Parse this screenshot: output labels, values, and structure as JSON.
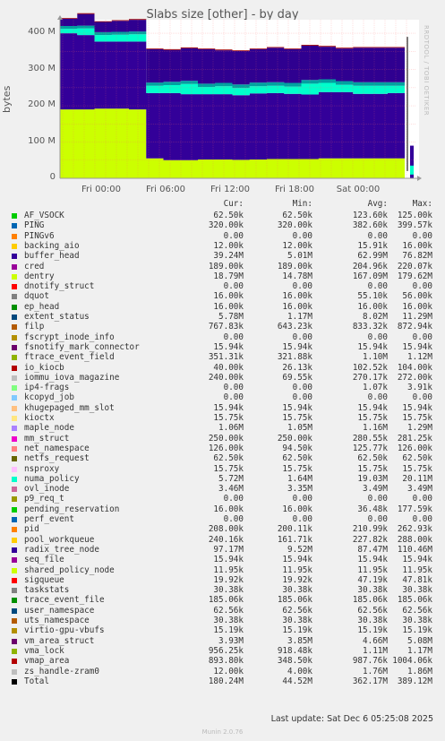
{
  "chart_data": {
    "type": "area",
    "title": "Slabs size [other] - by day",
    "ylabel": "bytes",
    "yticks": [
      "0",
      "100 M",
      "200 M",
      "300 M",
      "400 M"
    ],
    "ylim": [
      0,
      420
    ],
    "xticks": [
      "Fri 00:00",
      "Fri 06:00",
      "Fri 12:00",
      "Fri 18:00",
      "Sat 00:00"
    ],
    "stack_layers": [
      {
        "name": "dentry",
        "color": "#CCFF00",
        "values": [
          190,
          190,
          192,
          192,
          190,
          55,
          50,
          50,
          52,
          52,
          51,
          52,
          53,
          53,
          53,
          55,
          55,
          55,
          55,
          55,
          55
        ]
      },
      {
        "name": "buffer_head",
        "color": "#330099",
        "values": [
          210,
          205,
          185,
          185,
          187,
          180,
          185,
          182,
          180,
          180,
          178,
          182,
          182,
          180,
          178,
          183,
          183,
          178,
          178,
          180,
          185
        ]
      },
      {
        "name": "numa_policy",
        "color": "#00FFCC",
        "values": [
          12,
          18,
          18,
          19,
          20,
          20,
          22,
          28,
          20,
          22,
          20,
          20,
          20,
          20,
          30,
          25,
          20,
          22,
          22,
          20,
          20
        ]
      },
      {
        "name": "other",
        "color": "#00A0A0",
        "values": [
          8,
          8,
          8,
          8,
          8,
          9,
          9,
          9,
          9,
          9,
          10,
          10,
          10,
          10,
          10,
          10,
          10,
          10,
          10,
          10,
          10
        ]
      },
      {
        "name": "radix_tree_node",
        "color": "#2F0090",
        "values": [
          20,
          32,
          28,
          30,
          32,
          92,
          88,
          90,
          95,
          90,
          92,
          92,
          95,
          93,
          95,
          90,
          90,
          95,
          95,
          95,
          92
        ]
      },
      {
        "name": "filp",
        "color": "#a00000",
        "values": [
          2,
          2,
          2,
          2,
          2,
          2,
          2,
          2,
          2,
          2,
          2,
          2,
          2,
          2,
          2,
          2,
          2,
          2,
          2,
          2,
          2
        ]
      }
    ],
    "legend_headers": [
      "Cur:",
      "Min:",
      "Avg:",
      "Max:"
    ],
    "legend": [
      {
        "name": "AF_VSOCK",
        "color": "#00CC00",
        "cur": "62.50k",
        "min": "62.50k",
        "avg": "123.60k",
        "max": "125.00k"
      },
      {
        "name": "PING",
        "color": "#0066B3",
        "cur": "320.00k",
        "min": "320.00k",
        "avg": "382.60k",
        "max": "399.57k"
      },
      {
        "name": "PINGv6",
        "color": "#FF8000",
        "cur": "0.00",
        "min": "0.00",
        "avg": "0.00",
        "max": "0.00"
      },
      {
        "name": "backing_aio",
        "color": "#FFCC00",
        "cur": "12.00k",
        "min": "12.00k",
        "avg": "15.91k",
        "max": "16.00k"
      },
      {
        "name": "buffer_head",
        "color": "#330099",
        "cur": "39.24M",
        "min": "5.01M",
        "avg": "62.99M",
        "max": "76.82M"
      },
      {
        "name": "cred",
        "color": "#990099",
        "cur": "189.00k",
        "min": "189.00k",
        "avg": "204.96k",
        "max": "220.07k"
      },
      {
        "name": "dentry",
        "color": "#CCFF00",
        "cur": "18.79M",
        "min": "14.78M",
        "avg": "167.09M",
        "max": "179.62M"
      },
      {
        "name": "dnotify_struct",
        "color": "#FF0000",
        "cur": "0.00",
        "min": "0.00",
        "avg": "0.00",
        "max": "0.00"
      },
      {
        "name": "dquot",
        "color": "#808080",
        "cur": "16.00k",
        "min": "16.00k",
        "avg": "55.10k",
        "max": "56.00k"
      },
      {
        "name": "ep_head",
        "color": "#008F00",
        "cur": "16.00k",
        "min": "16.00k",
        "avg": "16.00k",
        "max": "16.00k"
      },
      {
        "name": "extent_status",
        "color": "#00487D",
        "cur": "5.78M",
        "min": "1.17M",
        "avg": "8.02M",
        "max": "11.29M"
      },
      {
        "name": "filp",
        "color": "#B35A00",
        "cur": "767.83k",
        "min": "643.23k",
        "avg": "833.32k",
        "max": "872.94k"
      },
      {
        "name": "fscrypt_inode_info",
        "color": "#B38F00",
        "cur": "0.00",
        "min": "0.00",
        "avg": "0.00",
        "max": "0.00"
      },
      {
        "name": "fsnotify_mark_connector",
        "color": "#6B006B",
        "cur": "15.94k",
        "min": "15.94k",
        "avg": "15.94k",
        "max": "15.94k"
      },
      {
        "name": "ftrace_event_field",
        "color": "#8FB300",
        "cur": "351.31k",
        "min": "321.88k",
        "avg": "1.10M",
        "max": "1.12M"
      },
      {
        "name": "io_kiocb",
        "color": "#B30000",
        "cur": "40.00k",
        "min": "26.13k",
        "avg": "102.52k",
        "max": "104.00k"
      },
      {
        "name": "iommu_iova_magazine",
        "color": "#BEBEBE",
        "cur": "240.00k",
        "min": "69.55k",
        "avg": "270.17k",
        "max": "272.00k"
      },
      {
        "name": "ip4-frags",
        "color": "#80FF80",
        "cur": "0.00",
        "min": "0.00",
        "avg": "1.07k",
        "max": "3.91k"
      },
      {
        "name": "kcopyd_job",
        "color": "#80C9FF",
        "cur": "0.00",
        "min": "0.00",
        "avg": "0.00",
        "max": "0.00"
      },
      {
        "name": "khugepaged_mm_slot",
        "color": "#FFC080",
        "cur": "15.94k",
        "min": "15.94k",
        "avg": "15.94k",
        "max": "15.94k"
      },
      {
        "name": "kioctx",
        "color": "#FFE680",
        "cur": "15.75k",
        "min": "15.75k",
        "avg": "15.75k",
        "max": "15.75k"
      },
      {
        "name": "maple_node",
        "color": "#AA80FF",
        "cur": "1.06M",
        "min": "1.05M",
        "avg": "1.16M",
        "max": "1.29M"
      },
      {
        "name": "mm_struct",
        "color": "#EE00CC",
        "cur": "250.00k",
        "min": "250.00k",
        "avg": "280.55k",
        "max": "281.25k"
      },
      {
        "name": "net_namespace",
        "color": "#FF8080",
        "cur": "126.00k",
        "min": "94.50k",
        "avg": "125.77k",
        "max": "126.00k"
      },
      {
        "name": "netfs_request",
        "color": "#666600",
        "cur": "62.50k",
        "min": "62.50k",
        "avg": "62.50k",
        "max": "62.50k"
      },
      {
        "name": "nsproxy",
        "color": "#FFBFFF",
        "cur": "15.75k",
        "min": "15.75k",
        "avg": "15.75k",
        "max": "15.75k"
      },
      {
        "name": "numa_policy",
        "color": "#00FFCC",
        "cur": "5.72M",
        "min": "1.64M",
        "avg": "19.03M",
        "max": "20.11M"
      },
      {
        "name": "ovl_inode",
        "color": "#CC6699",
        "cur": "3.46M",
        "min": "3.35M",
        "avg": "3.49M",
        "max": "3.49M"
      },
      {
        "name": "p9_req_t",
        "color": "#999900",
        "cur": "0.00",
        "min": "0.00",
        "avg": "0.00",
        "max": "0.00"
      },
      {
        "name": "pending_reservation",
        "color": "#00CC00",
        "cur": "16.00k",
        "min": "16.00k",
        "avg": "36.48k",
        "max": "177.59k"
      },
      {
        "name": "perf_event",
        "color": "#0066B3",
        "cur": "0.00",
        "min": "0.00",
        "avg": "0.00",
        "max": "0.00"
      },
      {
        "name": "pid",
        "color": "#FF8000",
        "cur": "208.00k",
        "min": "200.11k",
        "avg": "210.99k",
        "max": "262.93k"
      },
      {
        "name": "pool_workqueue",
        "color": "#FFCC00",
        "cur": "240.16k",
        "min": "161.71k",
        "avg": "227.82k",
        "max": "288.00k"
      },
      {
        "name": "radix_tree_node",
        "color": "#330099",
        "cur": "97.17M",
        "min": "9.52M",
        "avg": "87.47M",
        "max": "110.46M"
      },
      {
        "name": "seq_file",
        "color": "#990099",
        "cur": "15.94k",
        "min": "15.94k",
        "avg": "15.94k",
        "max": "15.94k"
      },
      {
        "name": "shared_policy_node",
        "color": "#CCFF00",
        "cur": "11.95k",
        "min": "11.95k",
        "avg": "11.95k",
        "max": "11.95k"
      },
      {
        "name": "sigqueue",
        "color": "#FF0000",
        "cur": "19.92k",
        "min": "19.92k",
        "avg": "47.19k",
        "max": "47.81k"
      },
      {
        "name": "taskstats",
        "color": "#808080",
        "cur": "30.38k",
        "min": "30.38k",
        "avg": "30.38k",
        "max": "30.38k"
      },
      {
        "name": "trace_event_file",
        "color": "#008F00",
        "cur": "185.06k",
        "min": "185.06k",
        "avg": "185.06k",
        "max": "185.06k"
      },
      {
        "name": "user_namespace",
        "color": "#00487D",
        "cur": "62.56k",
        "min": "62.56k",
        "avg": "62.56k",
        "max": "62.56k"
      },
      {
        "name": "uts_namespace",
        "color": "#B35A00",
        "cur": "30.38k",
        "min": "30.38k",
        "avg": "30.38k",
        "max": "30.38k"
      },
      {
        "name": "virtio-gpu-vbufs",
        "color": "#B38F00",
        "cur": "15.19k",
        "min": "15.19k",
        "avg": "15.19k",
        "max": "15.19k"
      },
      {
        "name": "vm_area_struct",
        "color": "#6B006B",
        "cur": "3.93M",
        "min": "3.85M",
        "avg": "4.66M",
        "max": "5.08M"
      },
      {
        "name": "vma_lock",
        "color": "#8FB300",
        "cur": "956.25k",
        "min": "918.48k",
        "avg": "1.11M",
        "max": "1.17M"
      },
      {
        "name": "vmap_area",
        "color": "#B30000",
        "cur": "893.80k",
        "min": "348.50k",
        "avg": "987.76k",
        "max": "1004.06k"
      },
      {
        "name": "zs_handle-zram0",
        "color": "#BEBEBE",
        "cur": "12.00k",
        "min": "4.00k",
        "avg": "1.76M",
        "max": "1.86M"
      },
      {
        "name": "Total",
        "color": "#000000",
        "cur": "180.24M",
        "min": "44.52M",
        "avg": "362.17M",
        "max": "389.12M"
      }
    ]
  },
  "side_label": "RRDTOOL / TOBI OETIKER",
  "footer": "Last update:  Sat Dec  6 05:25:08 2025",
  "munin": "Munin 2.0.76"
}
